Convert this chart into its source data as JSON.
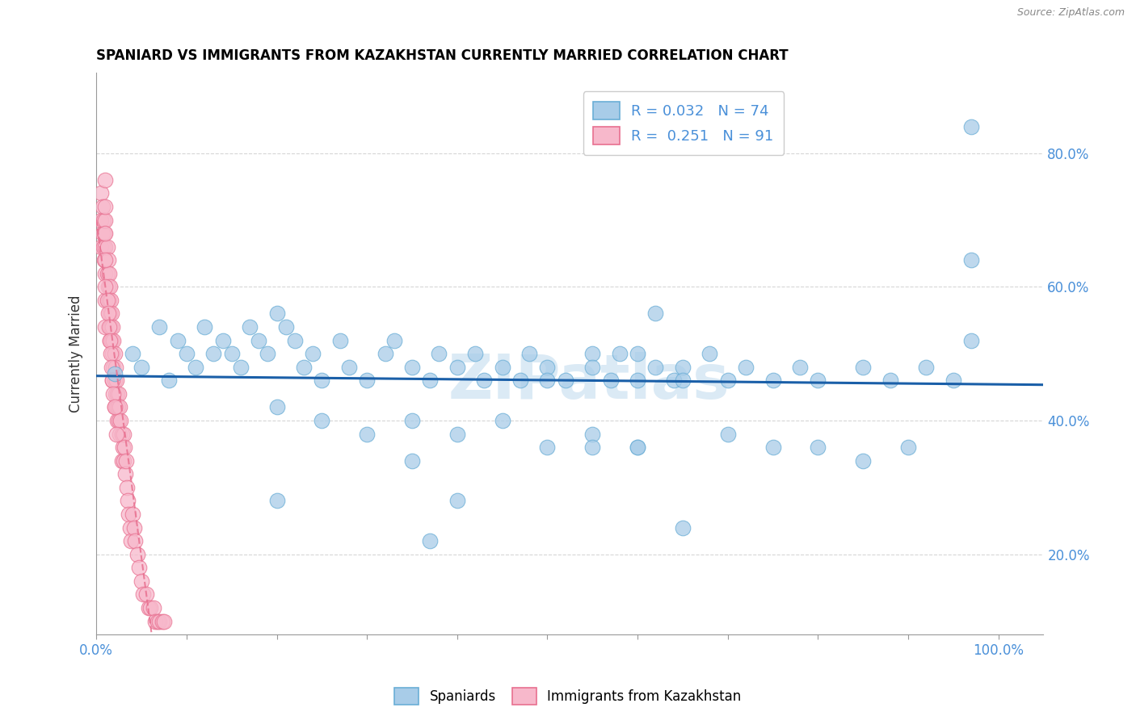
{
  "title": "SPANIARD VS IMMIGRANTS FROM KAZAKHSTAN CURRENTLY MARRIED CORRELATION CHART",
  "source_text": "Source: ZipAtlas.com",
  "ylabel": "Currently Married",
  "blue_color": "#a8cce8",
  "blue_edge_color": "#6aaed6",
  "pink_color": "#f7b8cb",
  "pink_edge_color": "#e87090",
  "blue_line_color": "#1a5fa8",
  "pink_line_color": "#e87090",
  "grid_color": "#cccccc",
  "tick_label_color": "#4a90d9",
  "watermark_color": "#c8dff0",
  "watermark_text": "ZIPatlas",
  "x_tick_positions": [
    0.0,
    0.1,
    0.2,
    0.3,
    0.4,
    0.5,
    0.6,
    0.7,
    0.8,
    0.9,
    1.0
  ],
  "y_tick_positions": [
    0.2,
    0.4,
    0.6,
    0.8
  ],
  "y_tick_labels": [
    "20.0%",
    "40.0%",
    "60.0%",
    "80.0%"
  ],
  "xlim": [
    0.0,
    1.05
  ],
  "ylim": [
    0.08,
    0.92
  ],
  "blue_x": [
    0.02,
    0.04,
    0.05,
    0.07,
    0.08,
    0.09,
    0.1,
    0.11,
    0.12,
    0.13,
    0.14,
    0.15,
    0.16,
    0.17,
    0.18,
    0.19,
    0.2,
    0.21,
    0.22,
    0.23,
    0.24,
    0.25,
    0.27,
    0.28,
    0.3,
    0.32,
    0.33,
    0.35,
    0.37,
    0.38,
    0.4,
    0.42,
    0.43,
    0.45,
    0.47,
    0.48,
    0.5,
    0.52,
    0.55,
    0.57,
    0.58,
    0.6,
    0.62,
    0.64,
    0.65,
    0.68,
    0.7,
    0.72,
    0.75,
    0.78,
    0.8,
    0.85,
    0.88,
    0.92,
    0.95,
    0.97,
    0.5,
    0.55,
    0.6,
    0.65,
    0.2,
    0.25,
    0.3,
    0.35,
    0.4,
    0.45,
    0.5,
    0.55,
    0.6,
    0.7,
    0.75,
    0.8,
    0.85,
    0.9
  ],
  "blue_y": [
    0.47,
    0.5,
    0.48,
    0.54,
    0.46,
    0.52,
    0.5,
    0.48,
    0.54,
    0.5,
    0.52,
    0.5,
    0.48,
    0.54,
    0.52,
    0.5,
    0.56,
    0.54,
    0.52,
    0.48,
    0.5,
    0.46,
    0.52,
    0.48,
    0.46,
    0.5,
    0.52,
    0.48,
    0.46,
    0.5,
    0.48,
    0.5,
    0.46,
    0.48,
    0.46,
    0.5,
    0.48,
    0.46,
    0.5,
    0.46,
    0.5,
    0.46,
    0.48,
    0.46,
    0.48,
    0.5,
    0.46,
    0.48,
    0.46,
    0.48,
    0.46,
    0.48,
    0.46,
    0.48,
    0.46,
    0.52,
    0.46,
    0.48,
    0.5,
    0.46,
    0.42,
    0.4,
    0.38,
    0.4,
    0.38,
    0.4,
    0.36,
    0.38,
    0.36,
    0.38,
    0.36,
    0.36,
    0.34,
    0.36
  ],
  "blue_y_extra": [
    0.84,
    0.64,
    0.56,
    0.34,
    0.28,
    0.22,
    0.28,
    0.36,
    0.36,
    0.24
  ],
  "blue_x_extra": [
    0.97,
    0.97,
    0.62,
    0.35,
    0.2,
    0.37,
    0.4,
    0.55,
    0.6,
    0.65
  ],
  "pink_x": [
    0.005,
    0.005,
    0.005,
    0.007,
    0.007,
    0.008,
    0.008,
    0.009,
    0.009,
    0.01,
    0.01,
    0.01,
    0.01,
    0.01,
    0.012,
    0.012,
    0.013,
    0.013,
    0.014,
    0.014,
    0.015,
    0.015,
    0.015,
    0.016,
    0.016,
    0.017,
    0.017,
    0.018,
    0.018,
    0.018,
    0.019,
    0.019,
    0.02,
    0.02,
    0.02,
    0.021,
    0.021,
    0.022,
    0.022,
    0.023,
    0.023,
    0.024,
    0.025,
    0.025,
    0.026,
    0.026,
    0.027,
    0.028,
    0.028,
    0.029,
    0.03,
    0.03,
    0.031,
    0.032,
    0.033,
    0.034,
    0.035,
    0.036,
    0.037,
    0.038,
    0.04,
    0.042,
    0.043,
    0.045,
    0.047,
    0.05,
    0.052,
    0.055,
    0.058,
    0.06,
    0.063,
    0.065,
    0.068,
    0.07,
    0.073,
    0.075,
    0.01,
    0.01,
    0.01,
    0.01,
    0.01,
    0.012,
    0.013,
    0.014,
    0.015,
    0.016,
    0.017,
    0.018,
    0.019,
    0.02,
    0.022
  ],
  "pink_y": [
    0.74,
    0.7,
    0.66,
    0.72,
    0.68,
    0.7,
    0.66,
    0.68,
    0.64,
    0.7,
    0.66,
    0.62,
    0.58,
    0.54,
    0.66,
    0.62,
    0.64,
    0.6,
    0.62,
    0.58,
    0.6,
    0.56,
    0.52,
    0.58,
    0.54,
    0.56,
    0.52,
    0.54,
    0.5,
    0.46,
    0.52,
    0.48,
    0.5,
    0.46,
    0.42,
    0.48,
    0.44,
    0.46,
    0.42,
    0.44,
    0.4,
    0.42,
    0.44,
    0.4,
    0.42,
    0.38,
    0.4,
    0.38,
    0.34,
    0.36,
    0.38,
    0.34,
    0.36,
    0.32,
    0.34,
    0.3,
    0.28,
    0.26,
    0.24,
    0.22,
    0.26,
    0.24,
    0.22,
    0.2,
    0.18,
    0.16,
    0.14,
    0.14,
    0.12,
    0.12,
    0.12,
    0.1,
    0.1,
    0.1,
    0.1,
    0.1,
    0.76,
    0.72,
    0.68,
    0.64,
    0.6,
    0.58,
    0.56,
    0.54,
    0.52,
    0.5,
    0.48,
    0.46,
    0.44,
    0.42,
    0.38
  ],
  "legend_items": [
    {
      "label": "R = 0.032   N = 74",
      "color": "#a8cce8",
      "edge": "#6aaed6"
    },
    {
      "label": "R =  0.251   N = 91",
      "color": "#f7b8cb",
      "edge": "#e87090"
    }
  ]
}
